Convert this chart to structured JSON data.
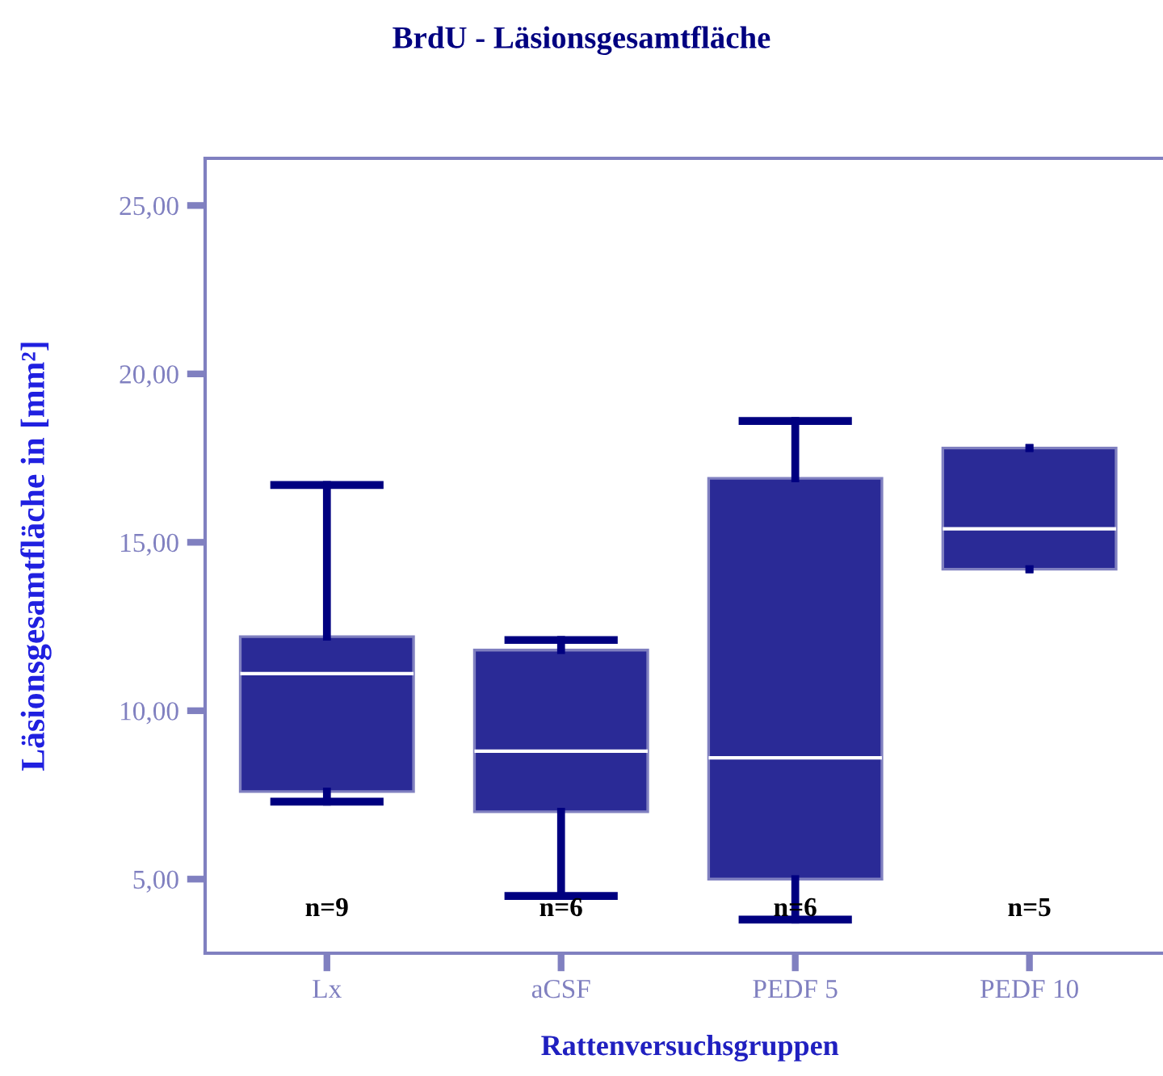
{
  "chart_data": {
    "type": "box",
    "title": "BrdU - Läsionsgesamtfläche",
    "xlabel": "Rattenversuchsgruppen",
    "ylabel": "Läsionsgesamtfläche in [mm²]",
    "categories": [
      "Lx",
      "aCSF",
      "PEDF 5",
      "PEDF 10"
    ],
    "series": [
      {
        "color": "#2a2a96",
        "boxes": [
          {
            "low": 7.3,
            "q1": 7.6,
            "median": 11.1,
            "q3": 12.2,
            "high": 16.7
          },
          {
            "low": 4.5,
            "q1": 7.0,
            "median": 8.8,
            "q3": 11.8,
            "high": 12.1
          },
          {
            "low": 3.8,
            "q1": 5.0,
            "median": 8.6,
            "q3": 16.9,
            "high": 18.6
          },
          {
            "low": 14.2,
            "q1": 14.2,
            "median": 15.4,
            "q3": 17.8,
            "high": 17.8
          }
        ]
      }
    ],
    "ylim": [
      2.8,
      26.4
    ],
    "yticks": [
      {
        "value": 5,
        "label": "5,00"
      },
      {
        "value": 10,
        "label": "10,00"
      },
      {
        "value": 15,
        "label": "15,00"
      },
      {
        "value": 20,
        "label": "20,00"
      },
      {
        "value": 25,
        "label": "25,00"
      }
    ],
    "annotations": [
      "n=9",
      "n=6",
      "n=6",
      "n=5"
    ],
    "grid": false
  }
}
